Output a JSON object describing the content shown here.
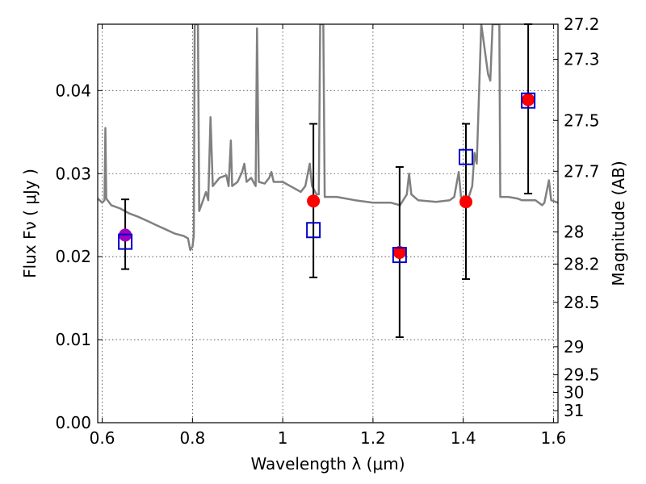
{
  "chart_data": {
    "type": "scatter",
    "xlabel": "Wavelength  λ (μm)",
    "ylabel": "Flux  Fν  ( μJy )",
    "y2label": "Magnitude (AB)",
    "xlim": [
      0.59,
      1.61
    ],
    "ylim": [
      0.0,
      0.048
    ],
    "x_ticks": [
      {
        "value": 0.6,
        "label": "0.6"
      },
      {
        "value": 0.8,
        "label": "0.8"
      },
      {
        "value": 1.0,
        "label": "1"
      },
      {
        "value": 1.2,
        "label": "1.2"
      },
      {
        "value": 1.4,
        "label": "1.4"
      },
      {
        "value": 1.6,
        "label": "1.6"
      }
    ],
    "y_ticks": [
      {
        "value": 0.0,
        "label": "0.00"
      },
      {
        "value": 0.01,
        "label": "0.01"
      },
      {
        "value": 0.02,
        "label": "0.02"
      },
      {
        "value": 0.03,
        "label": "0.03"
      },
      {
        "value": 0.04,
        "label": "0.04"
      }
    ],
    "y2_ticks": [
      {
        "label": "27.2",
        "value": 27.2
      },
      {
        "label": "27.3",
        "value": 27.3
      },
      {
        "label": "27.5",
        "value": 27.5
      },
      {
        "label": "27.7",
        "value": 27.7
      },
      {
        "label": "28",
        "value": 28.0
      },
      {
        "label": "28.2",
        "value": 28.2
      },
      {
        "label": "28.5",
        "value": 28.5
      },
      {
        "label": "29",
        "value": 29.0
      },
      {
        "label": "29.5",
        "value": 29.5
      },
      {
        "label": "30",
        "value": 30.0
      },
      {
        "label": "31",
        "value": 31.0
      }
    ],
    "grid": true,
    "colors": {
      "sed": "#808080",
      "observed": "#ff0000",
      "observed_special": "#a000c0",
      "model": "#0000cc",
      "errorbar": "#000000"
    },
    "observed_points": [
      {
        "x": 0.651,
        "y": 0.0226,
        "err_lo": 0.0185,
        "err_hi": 0.0269,
        "marker": "circle-purple"
      },
      {
        "x": 1.068,
        "y": 0.0267,
        "err_lo": 0.0175,
        "err_hi": 0.036,
        "marker": "circle-red"
      },
      {
        "x": 1.259,
        "y": 0.0205,
        "err_lo": 0.0103,
        "err_hi": 0.0308,
        "marker": "circle-red"
      },
      {
        "x": 1.406,
        "y": 0.0266,
        "err_lo": 0.0173,
        "err_hi": 0.036,
        "marker": "circle-red"
      },
      {
        "x": 1.544,
        "y": 0.0389,
        "err_lo": 0.0276,
        "err_hi": 0.048,
        "marker": "circle-red"
      }
    ],
    "model_points": [
      {
        "x": 0.651,
        "y": 0.0218
      },
      {
        "x": 1.068,
        "y": 0.0232
      },
      {
        "x": 1.259,
        "y": 0.0202
      },
      {
        "x": 1.406,
        "y": 0.032
      },
      {
        "x": 1.544,
        "y": 0.0388
      }
    ],
    "sed_curve": [
      [
        0.59,
        0.027
      ],
      [
        0.6,
        0.0265
      ],
      [
        0.605,
        0.0268
      ],
      [
        0.607,
        0.0355
      ],
      [
        0.609,
        0.027
      ],
      [
        0.62,
        0.0262
      ],
      [
        0.64,
        0.0258
      ],
      [
        0.66,
        0.0252
      ],
      [
        0.68,
        0.0248
      ],
      [
        0.7,
        0.0243
      ],
      [
        0.72,
        0.0238
      ],
      [
        0.74,
        0.0233
      ],
      [
        0.76,
        0.0228
      ],
      [
        0.78,
        0.0225
      ],
      [
        0.79,
        0.0222
      ],
      [
        0.795,
        0.0208
      ],
      [
        0.8,
        0.0212
      ],
      [
        0.803,
        0.0225
      ],
      [
        0.805,
        0.048
      ],
      [
        0.812,
        0.048
      ],
      [
        0.815,
        0.0255
      ],
      [
        0.825,
        0.027
      ],
      [
        0.83,
        0.0278
      ],
      [
        0.835,
        0.0268
      ],
      [
        0.84,
        0.0368
      ],
      [
        0.845,
        0.0285
      ],
      [
        0.86,
        0.0295
      ],
      [
        0.875,
        0.0298
      ],
      [
        0.88,
        0.0285
      ],
      [
        0.885,
        0.034
      ],
      [
        0.888,
        0.0285
      ],
      [
        0.9,
        0.029
      ],
      [
        0.91,
        0.0302
      ],
      [
        0.915,
        0.0312
      ],
      [
        0.92,
        0.029
      ],
      [
        0.93,
        0.0295
      ],
      [
        0.94,
        0.0285
      ],
      [
        0.943,
        0.0475
      ],
      [
        0.947,
        0.029
      ],
      [
        0.96,
        0.0288
      ],
      [
        0.97,
        0.0295
      ],
      [
        0.975,
        0.0302
      ],
      [
        0.98,
        0.029
      ],
      [
        1.0,
        0.029
      ],
      [
        1.02,
        0.0284
      ],
      [
        1.04,
        0.0278
      ],
      [
        1.05,
        0.0285
      ],
      [
        1.06,
        0.0312
      ],
      [
        1.065,
        0.0285
      ],
      [
        1.075,
        0.0275
      ],
      [
        1.08,
        0.0275
      ],
      [
        1.083,
        0.048
      ],
      [
        1.09,
        0.048
      ],
      [
        1.093,
        0.0272
      ],
      [
        1.12,
        0.0272
      ],
      [
        1.16,
        0.0268
      ],
      [
        1.2,
        0.0265
      ],
      [
        1.24,
        0.0265
      ],
      [
        1.26,
        0.0262
      ],
      [
        1.275,
        0.0275
      ],
      [
        1.28,
        0.03
      ],
      [
        1.285,
        0.0275
      ],
      [
        1.3,
        0.0268
      ],
      [
        1.34,
        0.0266
      ],
      [
        1.37,
        0.0268
      ],
      [
        1.38,
        0.0272
      ],
      [
        1.39,
        0.0302
      ],
      [
        1.395,
        0.0272
      ],
      [
        1.41,
        0.0268
      ],
      [
        1.42,
        0.0285
      ],
      [
        1.425,
        0.0325
      ],
      [
        1.43,
        0.0312
      ],
      [
        1.44,
        0.048
      ],
      [
        1.455,
        0.042
      ],
      [
        1.46,
        0.0412
      ],
      [
        1.465,
        0.048
      ],
      [
        1.48,
        0.048
      ],
      [
        1.482,
        0.0272
      ],
      [
        1.5,
        0.0272
      ],
      [
        1.52,
        0.027
      ],
      [
        1.53,
        0.0268
      ],
      [
        1.56,
        0.0268
      ],
      [
        1.575,
        0.0262
      ],
      [
        1.58,
        0.0265
      ],
      [
        1.59,
        0.0292
      ],
      [
        1.595,
        0.0268
      ],
      [
        1.61,
        0.0265
      ]
    ]
  }
}
